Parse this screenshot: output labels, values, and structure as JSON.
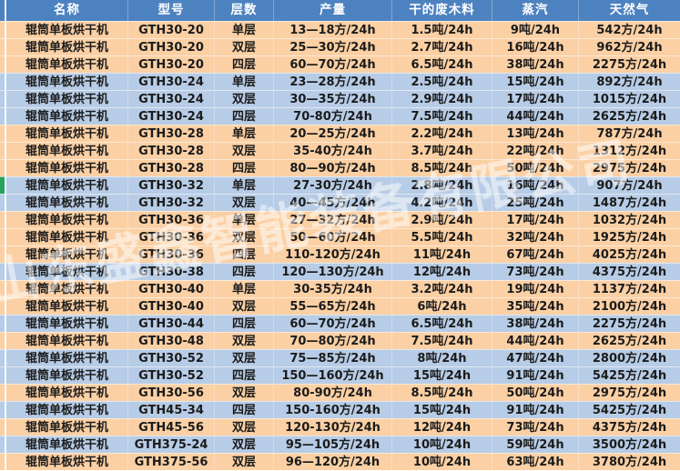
{
  "colors": {
    "header_bg": "#4d82c0",
    "header_text": "#ffffff",
    "band_orange": "#fbd0a4",
    "band_blue": "#b7cce6",
    "gridline": "#ffffff",
    "selection_green": "#27a25f",
    "body_text": "#1b1b1b"
  },
  "watermark": {
    "text": "山东盛鑫智能装备有限公司"
  },
  "table": {
    "columns": [
      {
        "key": "name",
        "label": "名称"
      },
      {
        "key": "model",
        "label": "型号"
      },
      {
        "key": "layers",
        "label": "层数"
      },
      {
        "key": "output",
        "label": "产量"
      },
      {
        "key": "waste",
        "label": "干的废木料"
      },
      {
        "key": "steam",
        "label": "蒸汽"
      },
      {
        "key": "gas",
        "label": "天然气"
      }
    ],
    "selected_row_index": 9,
    "rows": [
      {
        "band": "orange",
        "name": "辊筒单板烘干机",
        "model": "GTH30-20",
        "layers": "单层",
        "output": "13—18方/24h",
        "waste": "1.5吨/24h",
        "steam": "9吨/24h",
        "gas": "542方/24h"
      },
      {
        "band": "orange",
        "name": "辊筒单板烘干机",
        "model": "GTH30-20",
        "layers": "双层",
        "output": "25—30方/24h",
        "waste": "2.7吨/24h",
        "steam": "16吨/24h",
        "gas": "962方/24h"
      },
      {
        "band": "orange",
        "name": "辊筒单板烘干机",
        "model": "GTH30-20",
        "layers": "四层",
        "output": "60—70方/24h",
        "waste": "6.5吨/24h",
        "steam": "38吨/24h",
        "gas": "2275方/24h"
      },
      {
        "band": "blue",
        "name": "辊筒单板烘干机",
        "model": "GTH30-24",
        "layers": "单层",
        "output": "23—28方/24h",
        "waste": "2.5吨/24h",
        "steam": "15吨/24h",
        "gas": "892方/24h"
      },
      {
        "band": "blue",
        "name": "辊筒单板烘干机",
        "model": "GTH30-24",
        "layers": "双层",
        "output": "30—35方/24h",
        "waste": "2.9吨/24h",
        "steam": "17吨/24h",
        "gas": "1015方/24h"
      },
      {
        "band": "blue",
        "name": "辊筒单板烘干机",
        "model": "GTH30-24",
        "layers": "四层",
        "output": "70-80方/24h",
        "waste": "7.5吨/24h",
        "steam": "44吨/24h",
        "gas": "2625方/24h"
      },
      {
        "band": "orange",
        "name": "辊筒单板烘干机",
        "model": "GTH30-28",
        "layers": "单层",
        "output": "20—25方/24h",
        "waste": "2.2吨/24h",
        "steam": "13吨/24h",
        "gas": "787方/24h"
      },
      {
        "band": "orange",
        "name": "辊筒单板烘干机",
        "model": "GTH30-28",
        "layers": "双层",
        "output": "35-40方/24h",
        "waste": "3.7吨/24h",
        "steam": "22吨/24h",
        "gas": "1312方/24h"
      },
      {
        "band": "orange",
        "name": "辊筒单板烘干机",
        "model": "GTH30-28",
        "layers": "四层",
        "output": "80—90方/24h",
        "waste": "8.5吨/24h",
        "steam": "50吨/24h",
        "gas": "2975方/24h"
      },
      {
        "band": "blue",
        "name": "辊筒单板烘干机",
        "model": "GTH30-32",
        "layers": "单层",
        "output": "27-30方/24h",
        "waste": "2.8吨/24h",
        "steam": "16吨/24h",
        "gas": "907方/24h"
      },
      {
        "band": "blue",
        "name": "辊筒单板烘干机",
        "model": "GTH30-32",
        "layers": "双层",
        "output": "40—45方/24h",
        "waste": "4.2吨/24h",
        "steam": "25吨/24h",
        "gas": "1487方/24h"
      },
      {
        "band": "orange",
        "name": "辊筒单板烘干机",
        "model": "GTH30-36",
        "layers": "单层",
        "output": "27—32方/24h",
        "waste": "2.9吨/24h",
        "steam": "17吨/24h",
        "gas": "1032方/24h"
      },
      {
        "band": "orange",
        "name": "辊筒单板烘干机",
        "model": "GTH30-36",
        "layers": "双层",
        "output": "50—60方/24h",
        "waste": "5.5吨/24h",
        "steam": "32吨/24h",
        "gas": "1925方/24h"
      },
      {
        "band": "orange",
        "name": "辊筒单板烘干机",
        "model": "GTH30-36",
        "layers": "四层",
        "output": "110-120方/24h",
        "waste": "11吨/24h",
        "steam": "67吨/24h",
        "gas": "4025方/24h"
      },
      {
        "band": "blue",
        "name": "辊筒单板烘干机",
        "model": "GTH30-38",
        "layers": "四层",
        "output": "120—130方/24h",
        "waste": "12吨/24h",
        "steam": "73吨/24h",
        "gas": "4375方/24h"
      },
      {
        "band": "orange",
        "name": "辊筒单板烘干机",
        "model": "GTH30-40",
        "layers": "单层",
        "output": "30-35方/24h",
        "waste": "3.2吨/24h",
        "steam": "19吨/24h",
        "gas": "1137方/24h"
      },
      {
        "band": "orange",
        "name": "辊筒单板烘干机",
        "model": "GTH30-40",
        "layers": "双层",
        "output": "55—65方/24h",
        "waste": "6吨/24h",
        "steam": "35吨/24h",
        "gas": "2100方/24h"
      },
      {
        "band": "blue",
        "name": "辊筒单板烘干机",
        "model": "GTH30-44",
        "layers": "四层",
        "output": "60—70方/24h",
        "waste": "6.5吨/24h",
        "steam": "38吨/24h",
        "gas": "2275方/24h"
      },
      {
        "band": "orange",
        "name": "辊筒单板烘干机",
        "model": "GTH30-48",
        "layers": "双层",
        "output": "70—80方/24h",
        "waste": "7.5吨/24h",
        "steam": "44吨/24h",
        "gas": "2625方/24h"
      },
      {
        "band": "blue",
        "name": "辊筒单板烘干机",
        "model": "GTH30-52",
        "layers": "双层",
        "output": "75—85方/24h",
        "waste": "8吨/24h",
        "steam": "47吨/24h",
        "gas": "2800方/24h"
      },
      {
        "band": "blue",
        "name": "辊筒单板烘干机",
        "model": "GTH30-52",
        "layers": "四层",
        "output": "150—160方/24h",
        "waste": "15吨/24h",
        "steam": "91吨/24h",
        "gas": "5425方/24h"
      },
      {
        "band": "orange",
        "name": "辊筒单板烘干机",
        "model": "GTH30-56",
        "layers": "双层",
        "output": "80-90方/24h",
        "waste": "8.5吨/24h",
        "steam": "50吨/24h",
        "gas": "2975方/24h"
      },
      {
        "band": "blue",
        "name": "辊筒单板烘干机",
        "model": "GTH45-34",
        "layers": "四层",
        "output": "150-160方/24h",
        "waste": "15吨/24h",
        "steam": "91吨/24h",
        "gas": "5425方/24h"
      },
      {
        "band": "orange",
        "name": "辊筒单板烘干机",
        "model": "GTH45-56",
        "layers": "双层",
        "output": "120-130方/24h",
        "waste": "12吨/24h",
        "steam": "73吨/24h",
        "gas": "4375方/24h"
      },
      {
        "band": "blue",
        "name": "辊筒单板烘干机",
        "model": "GTH375-24",
        "layers": "双层",
        "output": "95—105方/24h",
        "waste": "10吨/24h",
        "steam": "59吨/24h",
        "gas": "3500方/24h"
      },
      {
        "band": "orange",
        "name": "辊筒单板烘干机",
        "model": "GTH375-56",
        "layers": "双层",
        "output": "96—120方/24h",
        "waste": "10吨/24h",
        "steam": "63吨/24h",
        "gas": "3780方/24h"
      }
    ]
  }
}
